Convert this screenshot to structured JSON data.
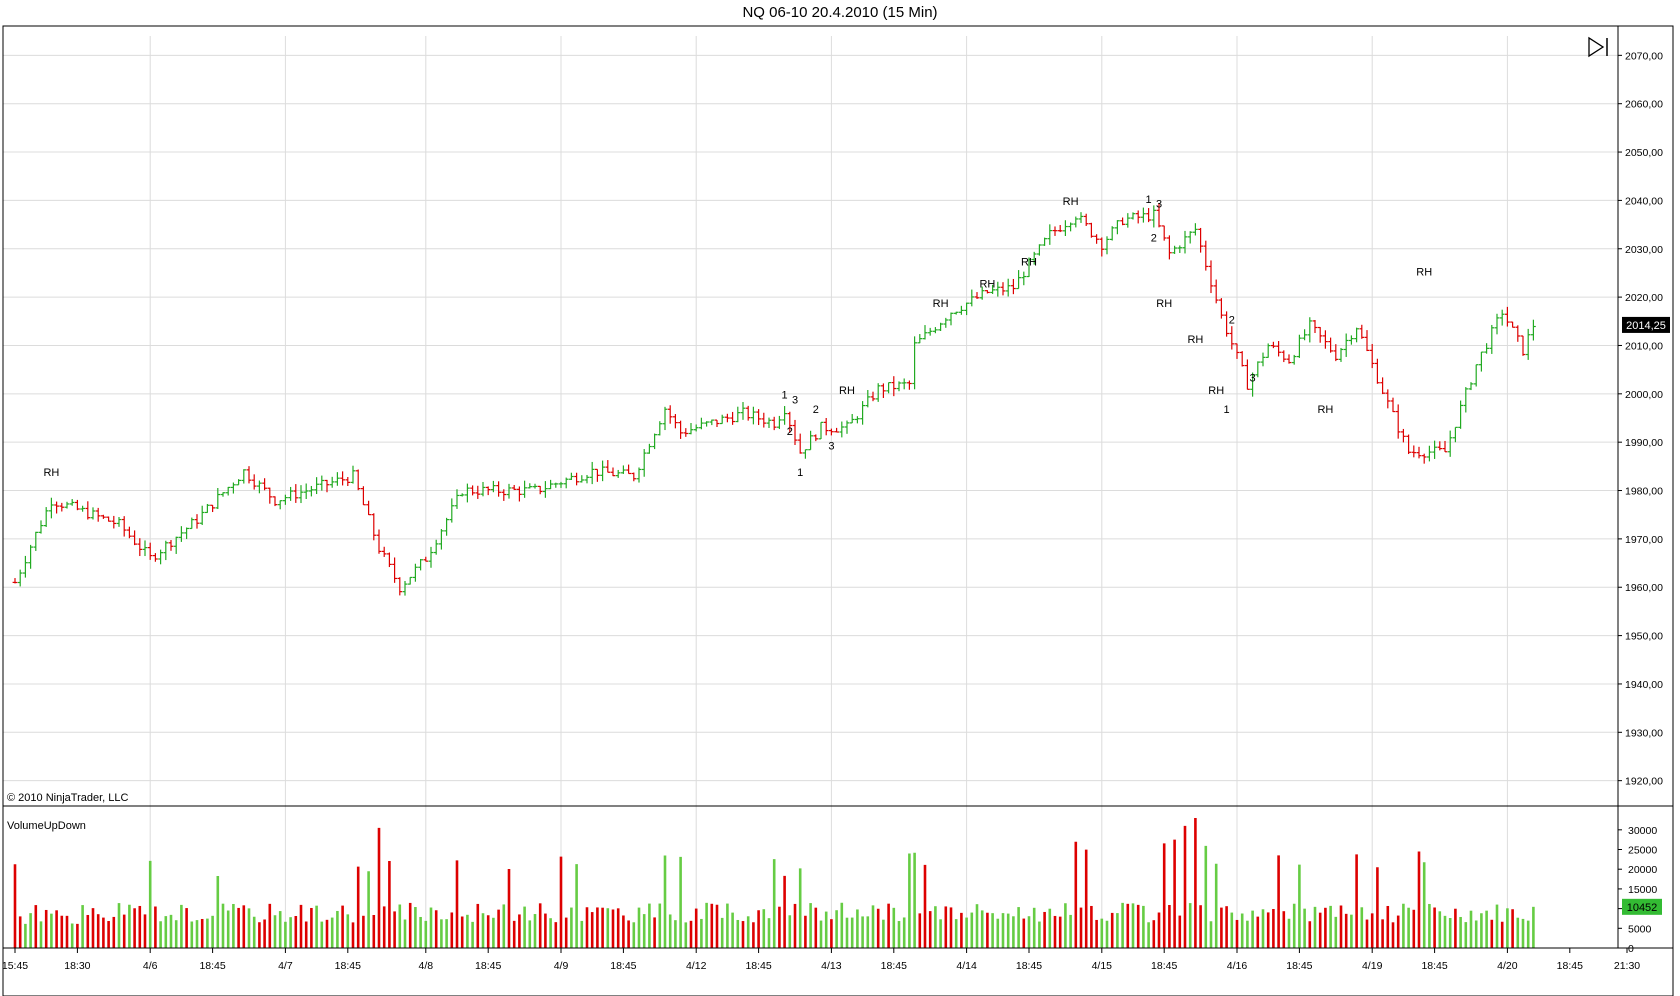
{
  "window": {
    "title": "NQ 06-10  20.4.2010 (15 Min)",
    "copyright": "© 2010 NinjaTrader, LLC",
    "volume_panel_label": "VolumeUpDown",
    "last_price_label": "2014,25",
    "last_volume_label": "10452"
  },
  "colors": {
    "up": "#22aa22",
    "down": "#dd0000",
    "up_volume": "#66cc44",
    "grid": "#dcdcdc",
    "axis": "#000000",
    "price_marker_bg": "#000000",
    "volume_marker_bg": "#33bb33"
  },
  "chart_data": [
    {
      "type": "ohlc",
      "title": "NQ 06-10  20.4.2010 (15 Min)",
      "y_ticks": [
        "1920,00",
        "1930,00",
        "1940,00",
        "1950,00",
        "1960,00",
        "1970,00",
        "1980,00",
        "1990,00",
        "2000,00",
        "2010,00",
        "2020,00",
        "2030,00",
        "2040,00",
        "2050,00",
        "2060,00",
        "2070,00"
      ],
      "ylim": [
        1916,
        2074
      ],
      "x_ticks": [
        "15:45",
        "18:30",
        "4/6",
        "18:45",
        "4/7",
        "18:45",
        "4/8",
        "18:45",
        "4/9",
        "18:45",
        "4/12",
        "18:45",
        "4/13",
        "18:45",
        "4/14",
        "18:45",
        "4/15",
        "18:45",
        "4/16",
        "18:45",
        "4/19",
        "18:45",
        "4/20",
        "18:45",
        "21:30"
      ],
      "key_points": [
        {
          "bar": 0,
          "close": 1961
        },
        {
          "bar": 4,
          "close": 1971
        },
        {
          "bar": 7,
          "close": 1978
        },
        {
          "bar": 20,
          "close": 1973
        },
        {
          "bar": 26,
          "close": 1966
        },
        {
          "bar": 35,
          "close": 1974
        },
        {
          "bar": 44,
          "close": 1984
        },
        {
          "bar": 50,
          "close": 1978
        },
        {
          "bar": 56,
          "close": 1980
        },
        {
          "bar": 65,
          "close": 1983
        },
        {
          "bar": 70,
          "close": 1968
        },
        {
          "bar": 74,
          "close": 1960
        },
        {
          "bar": 79,
          "close": 1966
        },
        {
          "bar": 86,
          "close": 1980
        },
        {
          "bar": 100,
          "close": 1980
        },
        {
          "bar": 111,
          "close": 1984
        },
        {
          "bar": 119,
          "close": 1983
        },
        {
          "bar": 125,
          "close": 1997
        },
        {
          "bar": 128,
          "close": 1992
        },
        {
          "bar": 140,
          "close": 1996
        },
        {
          "bar": 146,
          "close": 1994
        },
        {
          "bar": 148,
          "close": 1997
        },
        {
          "bar": 151,
          "close": 1988
        },
        {
          "bar": 155,
          "close": 1993
        },
        {
          "bar": 160,
          "close": 1993
        },
        {
          "bar": 166,
          "close": 2001
        },
        {
          "bar": 172,
          "close": 2002
        },
        {
          "bar": 173,
          "close": 2010
        },
        {
          "bar": 180,
          "close": 2017
        },
        {
          "bar": 187,
          "close": 2021
        },
        {
          "bar": 192,
          "close": 2022
        },
        {
          "bar": 199,
          "close": 2033
        },
        {
          "bar": 204,
          "close": 2037
        },
        {
          "bar": 209,
          "close": 2031
        },
        {
          "bar": 213,
          "close": 2036
        },
        {
          "bar": 219,
          "close": 2037
        },
        {
          "bar": 222,
          "close": 2029
        },
        {
          "bar": 227,
          "close": 2034
        },
        {
          "bar": 232,
          "close": 2016
        },
        {
          "bar": 237,
          "close": 2002
        },
        {
          "bar": 241,
          "close": 2010
        },
        {
          "bar": 245,
          "close": 2007
        },
        {
          "bar": 249,
          "close": 2014
        },
        {
          "bar": 254,
          "close": 2008
        },
        {
          "bar": 258,
          "close": 2014
        },
        {
          "bar": 264,
          "close": 1998
        },
        {
          "bar": 268,
          "close": 1988
        },
        {
          "bar": 275,
          "close": 1988
        },
        {
          "bar": 281,
          "close": 2006
        },
        {
          "bar": 286,
          "close": 2017
        },
        {
          "bar": 290,
          "close": 2009
        },
        {
          "bar": 292,
          "close": 2014.25
        }
      ],
      "annotations": [
        {
          "text": "RH",
          "bar": 7,
          "price": 1983
        },
        {
          "text": "1",
          "bar": 148,
          "price": 1999
        },
        {
          "text": "3",
          "bar": 150,
          "price": 1998
        },
        {
          "text": "2",
          "bar": 149,
          "price": 1991.5
        },
        {
          "text": "1",
          "bar": 151,
          "price": 1983
        },
        {
          "text": "2",
          "bar": 154,
          "price": 1996
        },
        {
          "text": "3",
          "bar": 157,
          "price": 1988.5
        },
        {
          "text": "RH",
          "bar": 160,
          "price": 2000
        },
        {
          "text": "RH",
          "bar": 178,
          "price": 2018
        },
        {
          "text": "RH",
          "bar": 187,
          "price": 2022
        },
        {
          "text": "RH",
          "bar": 195,
          "price": 2026.5
        },
        {
          "text": "RH",
          "bar": 203,
          "price": 2039
        },
        {
          "text": "1",
          "bar": 218,
          "price": 2039.5
        },
        {
          "text": "3",
          "bar": 220,
          "price": 2038.5
        },
        {
          "text": "2",
          "bar": 219,
          "price": 2031.5
        },
        {
          "text": "RH",
          "bar": 221,
          "price": 2018
        },
        {
          "text": "RH",
          "bar": 227,
          "price": 2010.5
        },
        {
          "text": "2",
          "bar": 234,
          "price": 2014.5
        },
        {
          "text": "RH",
          "bar": 231,
          "price": 2000
        },
        {
          "text": "1",
          "bar": 233,
          "price": 1996
        },
        {
          "text": "3",
          "bar": 238,
          "price": 2002.5
        },
        {
          "text": "RH",
          "bar": 252,
          "price": 1996
        },
        {
          "text": "RH",
          "bar": 271,
          "price": 2024.5
        }
      ]
    },
    {
      "type": "bar",
      "title": "VolumeUpDown",
      "y_ticks": [
        "0",
        "5000",
        "10000",
        "15000",
        "20000",
        "25000",
        "30000"
      ],
      "ylim": [
        0,
        33000
      ],
      "last_value": 10452,
      "peaks": [
        {
          "bar": 70,
          "value": 30500,
          "dir": "down"
        },
        {
          "bar": 227,
          "value": 33000,
          "dir": "down"
        },
        {
          "bar": 225,
          "value": 31000,
          "dir": "down"
        },
        {
          "bar": 223,
          "value": 27500,
          "dir": "down"
        },
        {
          "bar": 172,
          "value": 24000,
          "dir": "up"
        },
        {
          "bar": 270,
          "value": 24500,
          "dir": "down"
        },
        {
          "bar": 243,
          "value": 23500,
          "dir": "down"
        }
      ]
    }
  ]
}
